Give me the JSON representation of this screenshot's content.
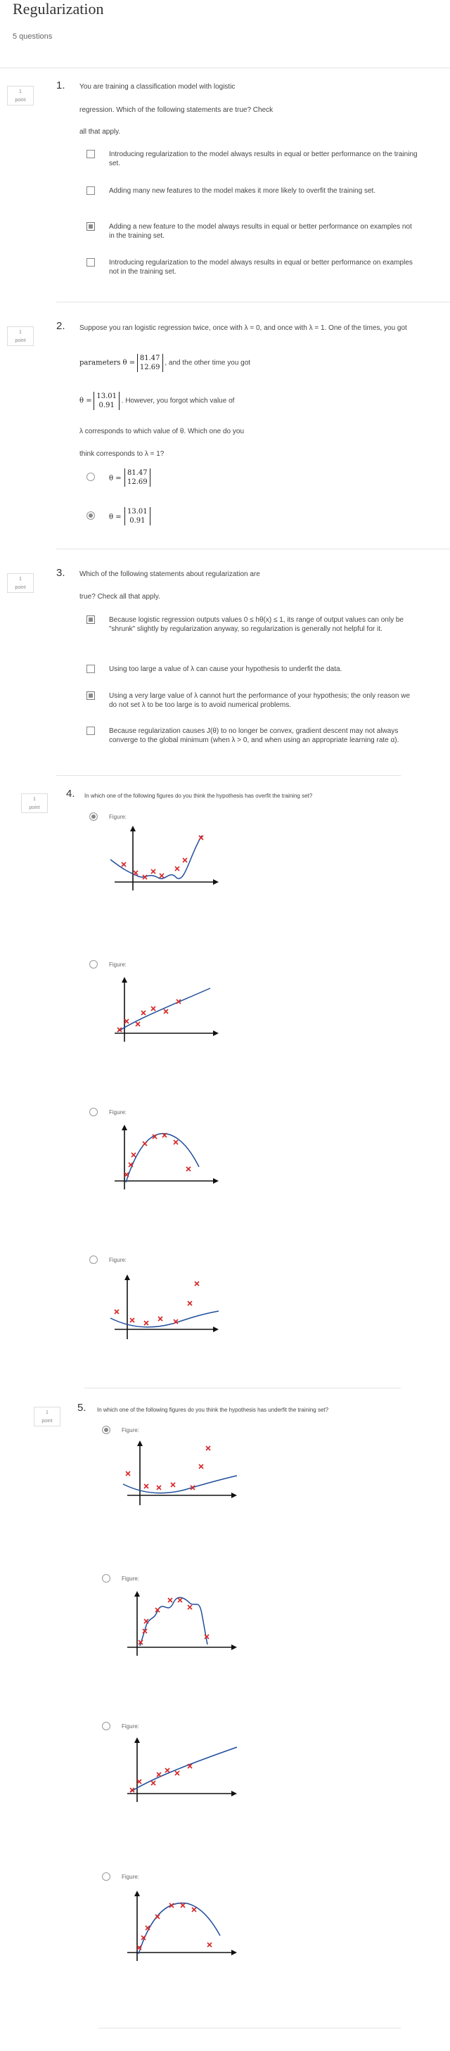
{
  "header": {
    "title": "Regularization",
    "subtitle": "5 questions"
  },
  "points_badge": {
    "value": "1",
    "unit": "point"
  },
  "q1": {
    "number": "1.",
    "text_a": "You are training a classification model with logistic",
    "text_b": "regression. Which of the following statements are true? Check",
    "text_c": "all that apply.",
    "options": [
      {
        "text": "Introducing regularization to the model always results in equal or better performance on the training set.",
        "checked": false
      },
      {
        "text": "Adding many new features to the model makes it more likely to overfit the training set.",
        "checked": false
      },
      {
        "text": "Adding a new feature to the model always results in equal or better performance on examples not in the training set.",
        "checked": true
      },
      {
        "text": "Introducing regularization to the model always results in equal or better performance on examples not in the training set.",
        "checked": false
      }
    ]
  },
  "q2": {
    "number": "2.",
    "line1": "Suppose you ran logistic regression twice, once with λ = 0, and once with λ = 1. One of the times, you got",
    "params_label": "parameters θ =",
    "theta_a": [
      "81.47",
      "12.69"
    ],
    "mid_text": ", and the other time you got",
    "theta_eq": "θ =",
    "theta_b": [
      "13.01",
      "0.91"
    ],
    "after_b": ". However, you forgot which value of",
    "line4": "λ corresponds to which value of θ. Which one do you",
    "line5": "think corresponds to λ = 1?",
    "options": [
      {
        "label": "θ =",
        "values": [
          "81.47",
          "12.69"
        ],
        "selected": false
      },
      {
        "label": "θ =",
        "values": [
          "13.01",
          "0.91"
        ],
        "selected": true
      }
    ]
  },
  "q3": {
    "number": "3.",
    "text_a": "Which of the following statements about regularization are",
    "text_b": "true? Check all that apply.",
    "options": [
      {
        "text": "Because logistic regression outputs values 0 ≤ hθ(x) ≤ 1, its range of output values can only be \"shrunk\" slightly by regularization anyway, so regularization is generally not helpful for it.",
        "checked": true
      },
      {
        "text": "Using too large a value of λ can cause your hypothesis to underfit the data.",
        "checked": false
      },
      {
        "text": "Using a very large value of λ cannot hurt the performance of your hypothesis; the only reason we do not set λ to be too large is to avoid numerical problems.",
        "checked": true
      },
      {
        "text": "Because regularization causes J(θ) to no longer be convex, gradient descent may not always converge to the global minimum (when λ > 0, and when using an appropriate learning rate α).",
        "checked": false
      }
    ]
  },
  "q4": {
    "number": "4.",
    "text": "In which one of the following figures do you think the hypothesis has overfit the training set?",
    "options": [
      {
        "label": "Figure:",
        "selected": true
      },
      {
        "label": "Figure:",
        "selected": false
      },
      {
        "label": "Figure:",
        "selected": false
      },
      {
        "label": "Figure:",
        "selected": false
      }
    ]
  },
  "q5": {
    "number": "5.",
    "text": "In which one of the following figures do you think the hypothesis has underfit the training set?",
    "options": [
      {
        "label": "Figure:",
        "selected": true
      },
      {
        "label": "Figure:",
        "selected": false
      },
      {
        "label": "Figure:",
        "selected": false
      },
      {
        "label": "Figure:",
        "selected": false
      }
    ]
  },
  "colors": {
    "marker": "#d62728",
    "curve": "#1f4e9b",
    "axis": "#111111"
  }
}
